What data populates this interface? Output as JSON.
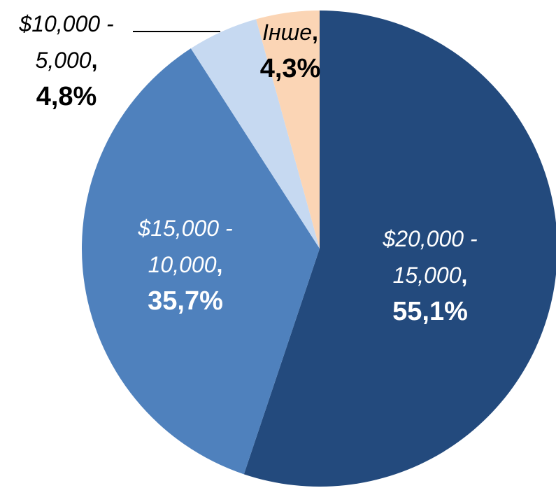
{
  "chart_data": {
    "type": "pie",
    "categories": [
      "$20,000 - 15,000",
      "$15,000 - 10,000",
      "$10,000 - 5,000",
      "Інше"
    ],
    "values": [
      55.1,
      35.7,
      4.8,
      4.3
    ],
    "value_labels": [
      "55,1%",
      "35,7%",
      "4,8%",
      "4,3%"
    ],
    "label_separator": ",",
    "colors": [
      "#234a7d",
      "#4f81bd",
      "#c6d9f1",
      "#fbd5b5"
    ],
    "label_colors": [
      "#ffffff",
      "#ffffff",
      "#000000",
      "#000000"
    ]
  }
}
